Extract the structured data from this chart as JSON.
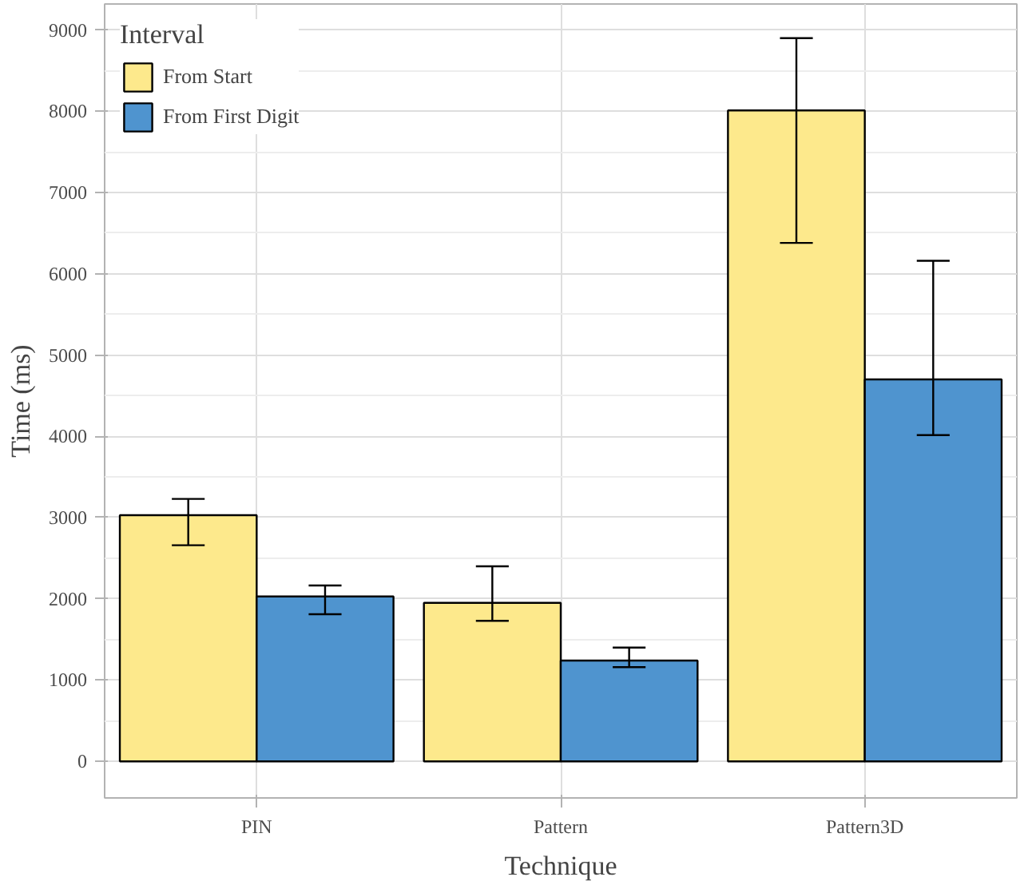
{
  "chart_data": {
    "type": "bar",
    "xlabel": "Technique",
    "ylabel": "Time (ms)",
    "legend_title": "Interval",
    "categories": [
      "PIN",
      "Pattern",
      "Pattern3D"
    ],
    "series": [
      {
        "name": "From Start",
        "color": "#fde98c",
        "values": [
          3030,
          1950,
          8010
        ],
        "errors": [
          [
            2660,
            3230
          ],
          [
            1730,
            2400
          ],
          [
            6380,
            8900
          ]
        ]
      },
      {
        "name": "From First Digit",
        "color": "#4f94cf",
        "values": [
          2030,
          1240,
          4700
        ],
        "errors": [
          [
            1810,
            2165
          ],
          [
            1160,
            1400
          ],
          [
            4015,
            6160
          ]
        ]
      }
    ],
    "ylim": [
      -450,
      9320
    ],
    "yticks": [
      0,
      1000,
      2000,
      3000,
      4000,
      5000,
      6000,
      7000,
      8000,
      9000
    ],
    "grid": true,
    "legend": "top left"
  }
}
